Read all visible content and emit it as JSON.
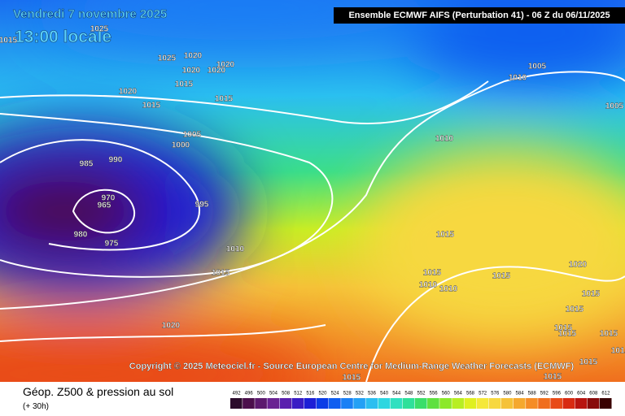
{
  "header": {
    "date": "Vendredi 7 novembre 2025",
    "time": "13:00 locale",
    "model": "Ensemble ECMWF AIFS  (Perturbation 41)  -  06 Z du 06/11/2025"
  },
  "copyright": "Copyright © 2025 Meteociel.fr - Source European Centre for Medium-Range Weather Forecasts (ECMWF)",
  "map": {
    "isobar_labels": [
      "1015",
      "1025",
      "1025",
      "1020",
      "1020",
      "1020",
      "1020",
      "1015",
      "1020",
      "1015",
      "1015",
      "1005",
      "1000",
      "990",
      "985",
      "970",
      "965",
      "980",
      "975",
      "995",
      "1010",
      "1015",
      "1020",
      "1005",
      "1010",
      "1005",
      "1010",
      "1015",
      "1015",
      "1010",
      "1010",
      "1015",
      "1020",
      "1015",
      "1015",
      "1015",
      "1015",
      "1015",
      "1015",
      "1015",
      "1015",
      "1015"
    ]
  },
  "footer": {
    "title": "Géop. Z500 & pression au sol",
    "lead": "(+ 30h)"
  },
  "legend": {
    "labels": [
      "492",
      "496",
      "500",
      "504",
      "508",
      "512",
      "516",
      "520",
      "524",
      "528",
      "532",
      "536",
      "540",
      "544",
      "548",
      "552",
      "556",
      "560",
      "564",
      "568",
      "572",
      "576",
      "580",
      "584",
      "588",
      "592",
      "596",
      "600",
      "604",
      "608",
      "612"
    ],
    "colors": [
      "#2b0b2b",
      "#4b0f4b",
      "#5c1a6e",
      "#6a2392",
      "#5a1fae",
      "#3a1cc4",
      "#1d1fd6",
      "#0b3ce6",
      "#0f5ef0",
      "#1a80f5",
      "#23a0f5",
      "#2bbef0",
      "#2ed6e0",
      "#2fe0c0",
      "#2ee09a",
      "#3ade6a",
      "#5fe040",
      "#8ce82a",
      "#b8ee22",
      "#dff020",
      "#f5e83a",
      "#f7d840",
      "#f5c238",
      "#f5a82e",
      "#f58c26",
      "#f06e1e",
      "#e84a18",
      "#d82a12",
      "#b81410",
      "#880a0a",
      "#3a0202"
    ]
  }
}
